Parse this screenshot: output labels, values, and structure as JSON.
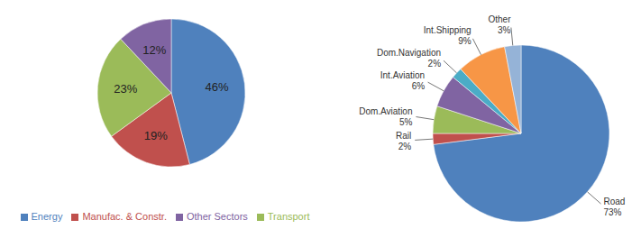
{
  "chart_data": [
    {
      "type": "pie",
      "categories": [
        "Energy",
        "Manufac. & Constr.",
        "Transport",
        "Other Sectors"
      ],
      "values": [
        46,
        19,
        23,
        12
      ],
      "value_labels": [
        "46%",
        "19%",
        "23%",
        "12%"
      ],
      "colors": [
        "#4f81bd",
        "#c0504d",
        "#9bbb59",
        "#8064a2"
      ],
      "legend": "bottom",
      "data_labels": true
    },
    {
      "type": "pie",
      "categories": [
        "Road",
        "Rail",
        "Dom.Aviation",
        "Int.Aviation",
        "Dom.Navigation",
        "Int.Shipping",
        "Other"
      ],
      "values": [
        73,
        2,
        5,
        6,
        2,
        9,
        3
      ],
      "value_labels": [
        "73%",
        "2%",
        "5%",
        "6%",
        "2%",
        "9%",
        "3%"
      ],
      "colors": [
        "#4f81bd",
        "#c0504d",
        "#9bbb59",
        "#8064a2",
        "#4bacc6",
        "#f79646",
        "#95b3d7"
      ],
      "data_labels": true
    }
  ]
}
